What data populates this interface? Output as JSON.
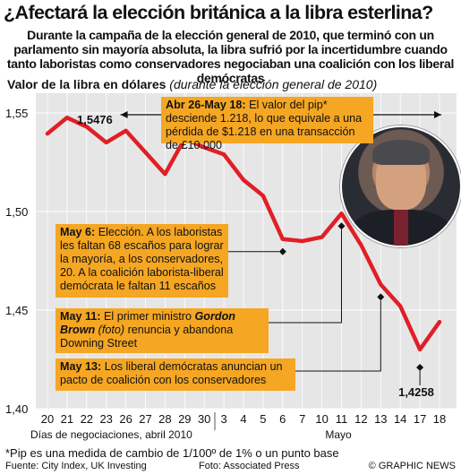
{
  "header": {
    "title": "¿Afectará la elección británica a la libra esterlina?",
    "subtitle": "Durante la campaña de la elección general de 2010, que terminó con un parlamento sin mayoría absoluta, la libra sufrió por la incertidumbre cuando tanto laboristas como conservadores negociaban una coalición con los liberal demócratas"
  },
  "axis_caption": {
    "main": "Valor de la libra en dólares",
    "note": "(durante la elección general de 2010)"
  },
  "chart_data": {
    "type": "line",
    "title": "Valor de la libra en dólares",
    "x": [
      "20",
      "21",
      "22",
      "23",
      "26",
      "27",
      "28",
      "29",
      "30",
      "3",
      "4",
      "5",
      "6",
      "7",
      "10",
      "11",
      "12",
      "13",
      "14",
      "17",
      "18"
    ],
    "x_group_labels": {
      "april": "Días de negociaciones, abril 2010",
      "may": "Mayo"
    },
    "series": [
      {
        "values": [
          1.5395,
          1.5476,
          1.543,
          1.535,
          1.541,
          1.53,
          1.519,
          1.537,
          1.5325,
          1.529,
          1.516,
          1.508,
          1.486,
          1.485,
          1.487,
          1.499,
          1.483,
          1.463,
          1.452,
          1.43,
          1.444
        ],
        "color": "#e01f26"
      }
    ],
    "ylim": [
      1.4,
      1.56
    ],
    "y_ticks": [
      "1,40",
      "1,45",
      "1,50",
      "1,55"
    ],
    "grid": true,
    "callouts": {
      "peak": "1,5476",
      "low": "1,4258"
    }
  },
  "annotations": {
    "pip": {
      "lead": "Abr 26-May 18:",
      "text": " El valor del pip* desciende 1.218, lo que equivale a una pérdida de $1.218 en una transacción de £10.000"
    },
    "may6": {
      "lead": "May 6:",
      "text": " Elección. A los laboristas les faltan 68 escaños para lograr la mayoría, a los conservadores, 20. A la coalición laborista-liberal demócrata le faltan 11 escaños"
    },
    "may11": {
      "lead": "May 11:",
      "text_a": " El primer ministro ",
      "name": "Gordon Brown",
      "photo_note": " (foto)",
      "text_b": " renuncia  y abandona Downing Street"
    },
    "may13": {
      "lead": "May 13:",
      "text": " Los liberal demócratas anuncian un pacto de coalición con los conservadores"
    }
  },
  "footer": {
    "footnote": "*Pip es una medida de cambio de 1/100º de 1% o un punto base",
    "sources": "Fuente: City Index, UK Investing",
    "photo_credit": "Foto: Associated Press",
    "brand": "© GRAPHIC NEWS"
  },
  "colors": {
    "line": "#e01f26",
    "callout": "#f5a623",
    "plot_bg": "#e6e6e6"
  }
}
